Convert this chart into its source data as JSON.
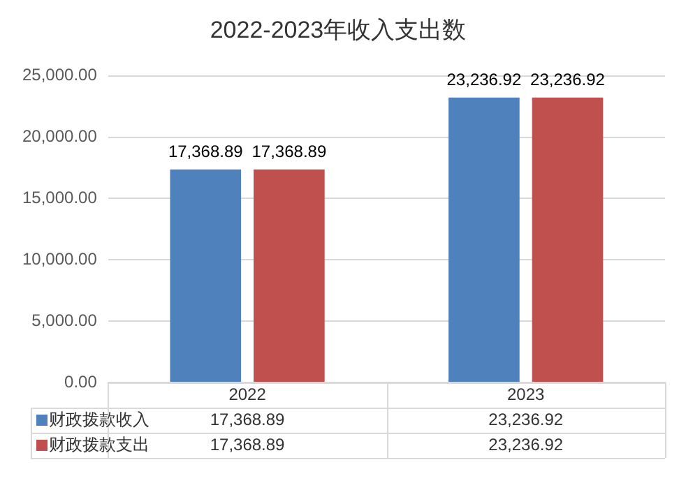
{
  "chart_data": {
    "type": "bar",
    "title": "2022-2023年收入支出数",
    "categories": [
      "2022",
      "2023"
    ],
    "series": [
      {
        "name": "财政拨款收入",
        "color": "#4f81bd",
        "values": [
          17368.89,
          23236.92
        ],
        "value_labels": [
          "17,368.89",
          "23,236.92"
        ]
      },
      {
        "name": "财政拨款支出",
        "color": "#c0504d",
        "values": [
          17368.89,
          23236.92
        ],
        "value_labels": [
          "17,368.89",
          "23,236.92"
        ]
      }
    ],
    "ylim": [
      0,
      25000
    ],
    "yticks": [
      {
        "value": 0,
        "label": "0.00"
      },
      {
        "value": 5000,
        "label": "5,000.00"
      },
      {
        "value": 10000,
        "label": "10,000.00"
      },
      {
        "value": 15000,
        "label": "15,000.00"
      },
      {
        "value": 20000,
        "label": "20,000.00"
      },
      {
        "value": 25000,
        "label": "25,000.00"
      }
    ],
    "grid": "y",
    "legend": "bottom"
  }
}
